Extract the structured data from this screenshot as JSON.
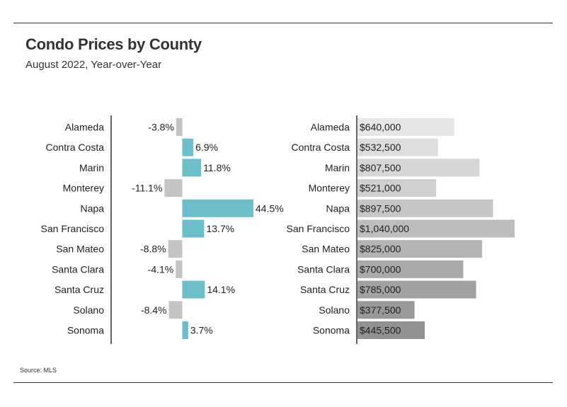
{
  "title": "Condo Prices by County",
  "subtitle": "August 2022, Year-over-Year",
  "source": "Source: MLS",
  "colors": {
    "positive": "#6bbfca",
    "negative": "#c4c4c4",
    "axis": "#333333",
    "price_shades": [
      "#e6e6e6",
      "#dddddd",
      "#d6d6d6",
      "#cfcfcf",
      "#c6c6c6",
      "#bdbdbd",
      "#b3b3b3",
      "#aaaaaa",
      "#a2a2a2",
      "#999999",
      "#929292"
    ]
  },
  "chart_data": [
    {
      "type": "bar",
      "orientation": "horizontal",
      "ylabel": "",
      "xlabel": "",
      "categories": [
        "Alameda",
        "Contra Costa",
        "Marin",
        "Monterey",
        "Napa",
        "San Francisco",
        "San Mateo",
        "Santa Clara",
        "Santa Cruz",
        "Solano",
        "Sonoma"
      ],
      "values": [
        -3.8,
        6.9,
        11.8,
        -11.1,
        44.5,
        13.7,
        -8.8,
        -4.1,
        14.1,
        -8.4,
        3.7
      ],
      "labels": [
        "-3.8%",
        "6.9%",
        "11.8%",
        "-11.1%",
        "44.5%",
        "13.7%",
        "-8.8%",
        "-4.1%",
        "14.1%",
        "-8.4%",
        "3.7%"
      ],
      "unit": "%",
      "xlim": [
        -45,
        50
      ]
    },
    {
      "type": "bar",
      "orientation": "horizontal",
      "ylabel": "",
      "xlabel": "",
      "categories": [
        "Alameda",
        "Contra Costa",
        "Marin",
        "Monterey",
        "Napa",
        "San Francisco",
        "San Mateo",
        "Santa Clara",
        "Santa Cruz",
        "Solano",
        "Sonoma"
      ],
      "values": [
        640000,
        532500,
        807500,
        521000,
        897500,
        1040000,
        825000,
        700000,
        785000,
        377500,
        445500
      ],
      "labels": [
        "$640,000",
        "$532,500",
        "$807,500",
        "$521,000",
        "$897,500",
        "$1,040,000",
        "$825,000",
        "$700,000",
        "$785,000",
        "$377,500",
        "$445,500"
      ],
      "unit": "$",
      "xlim": [
        0,
        1040000
      ]
    }
  ]
}
